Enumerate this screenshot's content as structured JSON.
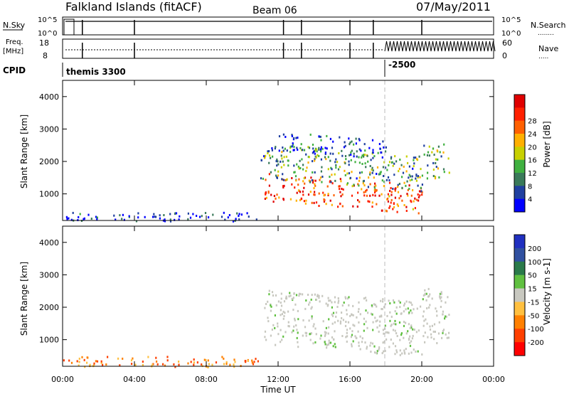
{
  "header": {
    "station": "Falkland Islands (fitACF)",
    "beam": "Beam 06",
    "date": "07/May/2011"
  },
  "strip_nsky": {
    "left_label": "N.Sky",
    "left_ticks": [
      "10^5",
      "10^0"
    ],
    "right_label": "N.Search",
    "right_ticks": [
      "10^5",
      "10^0"
    ],
    "right_legend": "........"
  },
  "strip_freq": {
    "left_label_1": "Freq.",
    "left_label_2": "[MHz]",
    "left_ticks": [
      "18",
      "8"
    ],
    "right_label": "Nave",
    "right_ticks": [
      "60",
      "0"
    ],
    "right_legend": "....."
  },
  "cpid": {
    "label": "CPID",
    "program": "themis 3300",
    "change_marker": "-2500"
  },
  "colors": {
    "power": [
      "#0000ff",
      "#2040a0",
      "#3a7a5a",
      "#40b040",
      "#c8d000",
      "#ffb000",
      "#ff6000",
      "#ff2000",
      "#e00000"
    ],
    "velocity": [
      "#2030c0",
      "#3050a0",
      "#2a7a4a",
      "#60c040",
      "#c8c8c0",
      "#ffc040",
      "#ff8000",
      "#ff4000",
      "#ff0000"
    ],
    "ground_scatter": "#c8c8c0"
  },
  "chart_data": [
    {
      "type": "heatmap",
      "panel": "power",
      "ylabel": "Slant Range [km]",
      "ylim": [
        180,
        4500
      ],
      "yticks": [
        "1000",
        "2000",
        "3000",
        "4000"
      ],
      "xlim": [
        "00:00",
        "24:00"
      ],
      "colorbar_label": "Power [dB]",
      "colorbar_ticks": [
        "4",
        "8",
        "12",
        "16",
        "20",
        "24",
        "28"
      ],
      "regions": [
        {
          "t_start": 11.2,
          "t_end": 20.0,
          "r_start": 800,
          "r_end": 1700,
          "level": 0.8
        },
        {
          "t_start": 11.0,
          "t_end": 21.5,
          "r_start": 1500,
          "r_end": 2600,
          "level": 0.35
        },
        {
          "t_start": 12.0,
          "t_end": 18.0,
          "r_start": 2400,
          "r_end": 3000,
          "level": 0.2
        },
        {
          "t_start": 0.0,
          "t_end": 11.0,
          "r_start": 180,
          "r_end": 450,
          "level": 0.1
        }
      ]
    },
    {
      "type": "heatmap",
      "panel": "velocity",
      "ylabel": "Slant Range [km]",
      "ylim": [
        180,
        4500
      ],
      "yticks": [
        "1000",
        "2000",
        "3000",
        "4000"
      ],
      "xlim": [
        "00:00",
        "24:00"
      ],
      "xlabel": "Time UT",
      "xticks": [
        "00:00",
        "04:00",
        "08:00",
        "12:00",
        "16:00",
        "20:00",
        "00:00"
      ],
      "colorbar_label": "Velocity [m s-1]",
      "colorbar_ticks": [
        "200",
        "100",
        "50",
        "15",
        "-15",
        "-50",
        "-100",
        "-200"
      ],
      "regions": [
        {
          "t_start": 11.2,
          "t_end": 21.5,
          "r_start": 900,
          "r_end": 2600,
          "kind": "ground"
        },
        {
          "t_start": 0.0,
          "t_end": 11.0,
          "r_start": 180,
          "r_end": 500,
          "kind": "negative"
        }
      ]
    }
  ]
}
